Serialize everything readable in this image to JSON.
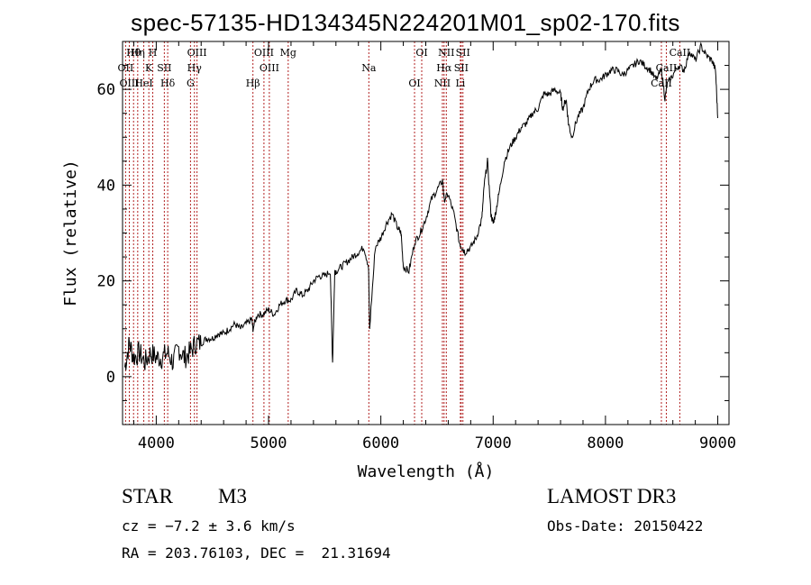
{
  "header": {
    "title": "spec-57135-HD134345N224201M01_sp02-170.fits"
  },
  "info": {
    "object_class": "STAR",
    "subclass": "M3",
    "survey": "LAMOST DR3",
    "cz": "cz = −7.2 ± 3.6 km/s",
    "obs_date": "Obs-Date: 20150422",
    "coords": "RA = 203.76103, DEC =  21.31694"
  },
  "chart_data": {
    "type": "line",
    "title": "spec-57135-HD134345N224201M01_sp02-170.fits",
    "xlabel": "Wavelength (Å)",
    "ylabel": "Flux (relative)",
    "xlim": [
      3700,
      9100
    ],
    "ylim": [
      -10,
      70
    ],
    "x_ticks": [
      4000,
      5000,
      6000,
      7000,
      8000,
      9000
    ],
    "x_tick_labels": [
      "4000",
      "5000",
      "6000",
      "7000",
      "8000",
      "9000"
    ],
    "y_ticks": [
      0,
      20,
      40,
      60
    ],
    "y_tick_labels": [
      "0",
      "20",
      "40",
      "60"
    ],
    "grid": false,
    "line_color": "#000000",
    "marker_color": "#b22222",
    "spectrum": {
      "x": [
        3720,
        3760,
        3800,
        3850,
        3900,
        3950,
        4000,
        4050,
        4100,
        4150,
        4200,
        4250,
        4300,
        4350,
        4400,
        4450,
        4500,
        4550,
        4600,
        4650,
        4700,
        4750,
        4800,
        4850,
        4861,
        4900,
        4950,
        5000,
        5050,
        5100,
        5150,
        5200,
        5250,
        5300,
        5350,
        5400,
        5450,
        5500,
        5550,
        5570,
        5590,
        5600,
        5650,
        5700,
        5750,
        5800,
        5850,
        5890,
        5900,
        5950,
        6000,
        6050,
        6100,
        6150,
        6180,
        6200,
        6250,
        6300,
        6350,
        6400,
        6450,
        6500,
        6550,
        6563,
        6600,
        6650,
        6700,
        6720,
        6750,
        6800,
        6850,
        6900,
        6920,
        6950,
        6980,
        7000,
        7020,
        7050,
        7100,
        7150,
        7200,
        7250,
        7300,
        7350,
        7400,
        7450,
        7500,
        7550,
        7600,
        7620,
        7650,
        7670,
        7700,
        7750,
        7800,
        7850,
        7900,
        7950,
        8000,
        8050,
        8100,
        8150,
        8200,
        8250,
        8300,
        8350,
        8400,
        8450,
        8500,
        8530,
        8550,
        8600,
        8650,
        8700,
        8750,
        8800,
        8850,
        8900,
        8950,
        8980,
        9000
      ],
      "y": [
        2,
        7,
        4,
        5,
        3,
        5,
        4,
        4,
        5,
        3,
        6,
        4,
        5,
        7,
        7,
        8,
        8,
        9,
        9,
        10,
        11,
        10,
        11,
        12,
        10,
        13,
        13,
        14,
        13,
        15,
        16,
        16,
        18,
        17,
        18,
        20,
        21,
        21,
        22,
        3,
        22,
        22,
        23,
        24,
        25,
        26,
        27,
        23,
        10,
        27,
        29,
        32,
        34,
        31,
        30,
        23,
        22,
        28,
        30,
        33,
        37,
        39,
        41,
        37,
        38,
        34,
        28,
        27,
        26,
        27,
        29,
        33,
        40,
        45,
        34,
        32,
        34,
        38,
        45,
        48,
        50,
        52,
        53,
        55,
        56,
        59,
        59,
        60,
        59,
        56,
        58,
        53,
        50,
        54,
        56,
        60,
        62,
        62,
        63,
        64,
        64,
        63,
        64,
        65,
        66,
        65,
        64,
        62,
        64,
        58,
        61,
        63,
        65,
        64,
        68,
        66,
        69,
        67,
        66,
        64,
        54
      ]
    },
    "line_markers": [
      {
        "name": "Hθ",
        "x": 3798
      },
      {
        "name": "OII",
        "x": 3727
      },
      {
        "name": "OIII",
        "x": 3760
      },
      {
        "name": "Hη",
        "x": 3835
      },
      {
        "name": "K",
        "x": 3934
      },
      {
        "name": "HeI",
        "x": 3889
      },
      {
        "name": "H",
        "x": 3969
      },
      {
        "name": "SII",
        "x": 4072
      },
      {
        "name": "Hδ",
        "x": 4102
      },
      {
        "name": "OIII",
        "x": 4363
      },
      {
        "name": "Hγ",
        "x": 4340
      },
      {
        "name": "G",
        "x": 4305
      },
      {
        "name": "OIII",
        "x": 4959
      },
      {
        "name": "OIII",
        "x": 5007
      },
      {
        "name": "Hβ",
        "x": 4861
      },
      {
        "name": "Mg",
        "x": 5175
      },
      {
        "name": "Na",
        "x": 5893
      },
      {
        "name": "OI",
        "x": 6300
      },
      {
        "name": "OI",
        "x": 6364
      },
      {
        "name": "Hα",
        "x": 6563
      },
      {
        "name": "NII",
        "x": 6548
      },
      {
        "name": "NII",
        "x": 6583
      },
      {
        "name": "SII",
        "x": 6716
      },
      {
        "name": "Li",
        "x": 6708
      },
      {
        "name": "SII",
        "x": 6731
      },
      {
        "name": "CaII",
        "x": 8542
      },
      {
        "name": "CaII",
        "x": 8498
      },
      {
        "name": "CaII",
        "x": 8662
      }
    ]
  }
}
